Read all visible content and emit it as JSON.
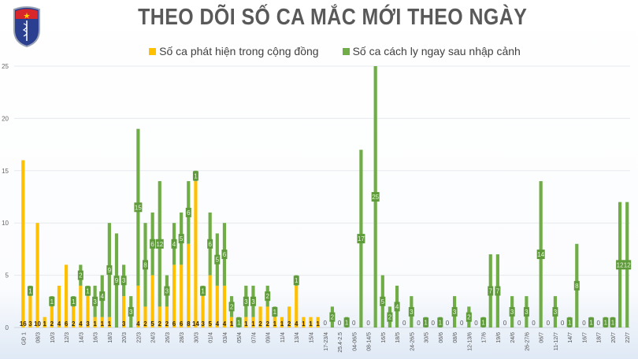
{
  "header": {
    "title": "THEO DÕI SỐ CA MẮC MỚI THEO NGÀY",
    "logo_text": "BỘ Y TẾ MINISTRY OF HEALTH"
  },
  "chart_data": {
    "type": "bar",
    "stacked": true,
    "title": "THEO DÕI SỐ CA MẮC MỚI THEO NGÀY",
    "xlabel": "",
    "ylabel": "",
    "ylim": [
      0,
      25
    ],
    "yticks": [
      0,
      5,
      10,
      15,
      20,
      25
    ],
    "grid": true,
    "legend_position": "top",
    "categories": [
      "GĐ 1",
      "",
      "08/3",
      "",
      "10/3",
      "",
      "12/3",
      "",
      "14/3",
      "",
      "16/3",
      "",
      "18/3",
      "",
      "20/3",
      "",
      "22/3",
      "",
      "24/3",
      "",
      "26/3",
      "",
      "28/3",
      "",
      "30/3",
      "",
      "01/4",
      "",
      "03/4",
      "",
      "05/4",
      "",
      "07/4",
      "",
      "09/4",
      "",
      "11/4",
      "",
      "13/4",
      "",
      "15/4",
      "",
      "17-23/4",
      "",
      "25.4-2.5",
      "",
      "04-06/5",
      "",
      "08-14/5",
      "",
      "16/5",
      "",
      "18/5",
      "",
      "24-26/5",
      "",
      "30/5",
      "",
      "06/6",
      "",
      "08/6",
      "",
      "12-13/6",
      "",
      "17/6",
      "",
      "19/6",
      "",
      "24/6",
      "",
      "26-27/6",
      "",
      "06/7",
      "",
      "11-12/7",
      "",
      "14/7",
      "",
      "16/7",
      "",
      "18/7",
      "",
      "20/7",
      "",
      "22/7"
    ],
    "series": [
      {
        "name": "Số ca phát hiện trong cộng đồng",
        "color": "#FFC000",
        "values": [
          16,
          3,
          10,
          1,
          2,
          4,
          6,
          2,
          4,
          3,
          1,
          1,
          1,
          0,
          3,
          0,
          4,
          2,
          5,
          2,
          2,
          6,
          6,
          8,
          14,
          3,
          5,
          4,
          4,
          1,
          0,
          1,
          1,
          2,
          2,
          1,
          1,
          2,
          4,
          1,
          1,
          1,
          0,
          0,
          0,
          0,
          0,
          0,
          0,
          0,
          0,
          0,
          0,
          0,
          0,
          0,
          0,
          0,
          0,
          0,
          0,
          0,
          0,
          0,
          0,
          0,
          0,
          0,
          0,
          0,
          0,
          0,
          0,
          0,
          0,
          0,
          0,
          0,
          0,
          0,
          0,
          0,
          0,
          0,
          0
        ]
      },
      {
        "name": "Số ca cách ly ngay sau nhập cảnh",
        "color": "#70AD47",
        "values": [
          0,
          1,
          0,
          0,
          1,
          0,
          0,
          1,
          2,
          1,
          3,
          4,
          9,
          9,
          3,
          3,
          15,
          8,
          6,
          12,
          3,
          4,
          5,
          6,
          1,
          1,
          6,
          5,
          6,
          2,
          1,
          3,
          3,
          0,
          2,
          1,
          0,
          0,
          1,
          0,
          0,
          0,
          0,
          2,
          0,
          1,
          0,
          17,
          0,
          25,
          5,
          2,
          4,
          0,
          3,
          0,
          1,
          0,
          1,
          0,
          3,
          0,
          2,
          0,
          1,
          7,
          7,
          0,
          3,
          0,
          3,
          0,
          14,
          0,
          3,
          0,
          1,
          8,
          0,
          1,
          0,
          1,
          1,
          12,
          12
        ]
      }
    ]
  }
}
